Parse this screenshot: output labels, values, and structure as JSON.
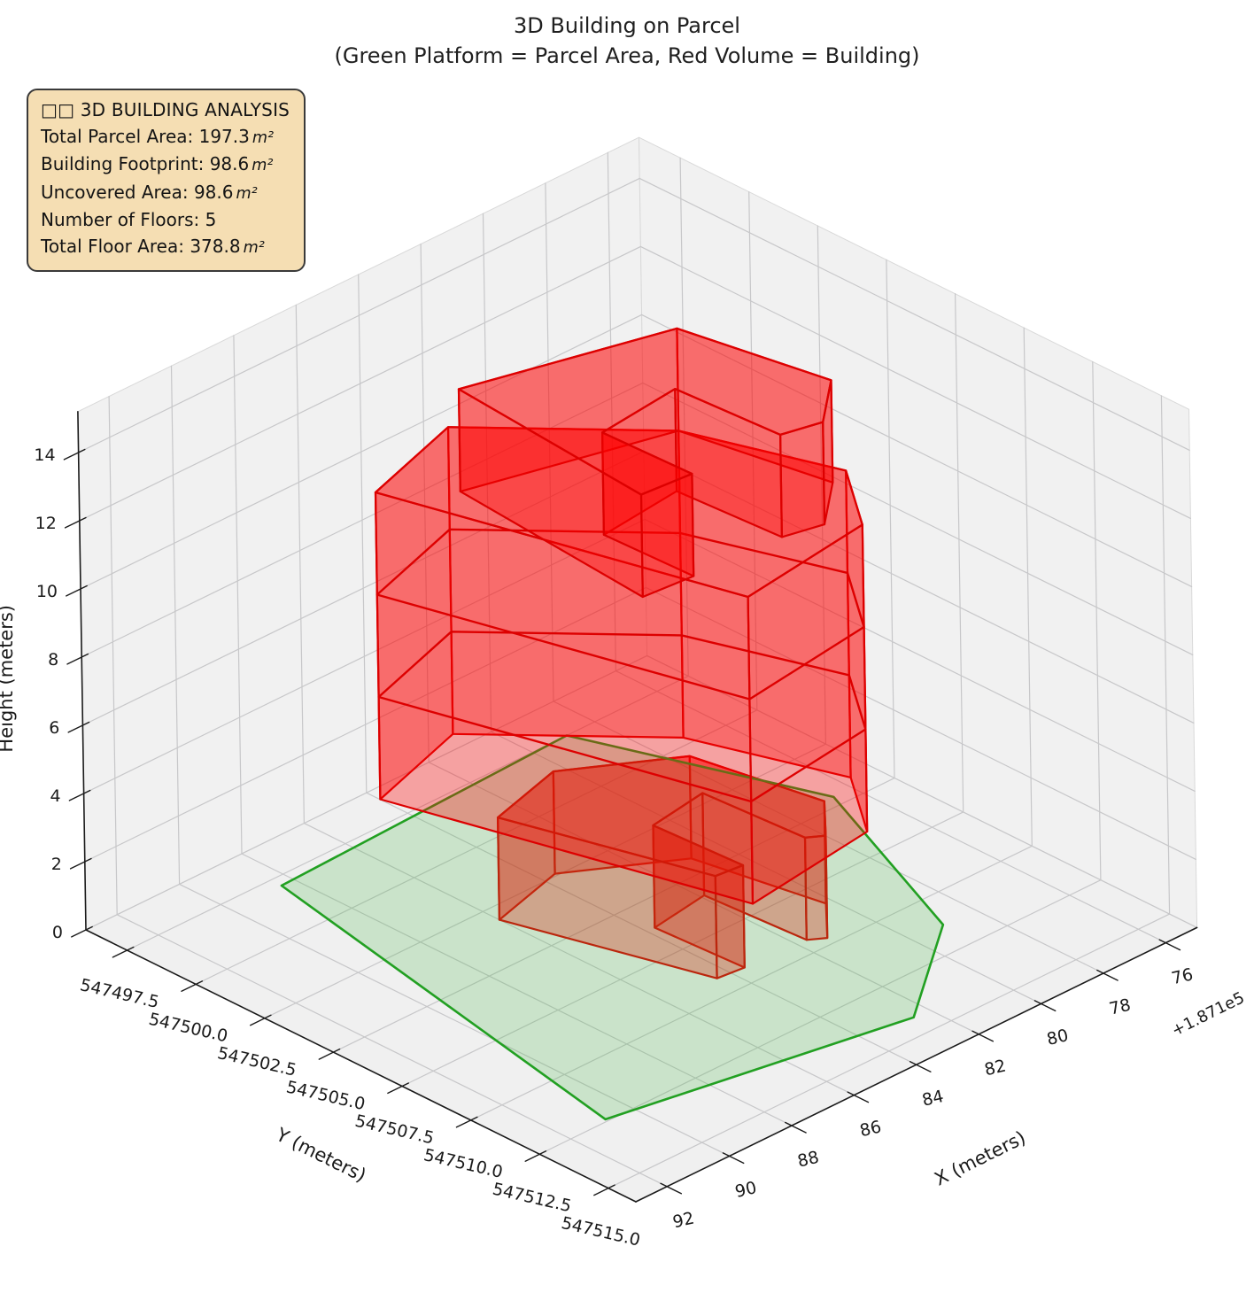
{
  "title": {
    "line1": "3D Building on Parcel",
    "line2": "(Green Platform = Parcel Area, Red Volume = Building)"
  },
  "info_box": {
    "title": "□□ 3D BUILDING ANALYSIS",
    "rows": [
      {
        "label": "Total Parcel Area:",
        "value": "197.3",
        "unit": "m²"
      },
      {
        "label": "Building Footprint:",
        "value": "98.6",
        "unit": "m²"
      },
      {
        "label": "Uncovered Area:",
        "value": "98.6",
        "unit": "m²"
      },
      {
        "label": "Number of Floors:",
        "value": "5",
        "unit": ""
      },
      {
        "label": "Total Floor Area:",
        "value": "378.8",
        "unit": "m²"
      }
    ],
    "background": "#f5deb3",
    "border_color": "#3a3a3a"
  },
  "chart_data": {
    "type": "3d-building",
    "axes": {
      "x": {
        "label": "X (meters)",
        "ticks": [
          187176,
          187178,
          187180,
          187182,
          187184,
          187186,
          187188,
          187190,
          187192
        ],
        "tick_labels": [
          "76",
          "78",
          "80",
          "82",
          "84",
          "86",
          "88",
          "90",
          "92"
        ],
        "offset_text": "+1.871e5",
        "lim": [
          187175,
          187193
        ]
      },
      "y": {
        "label": "Y (meters)",
        "ticks": [
          547497.5,
          547500.0,
          547502.5,
          547505.0,
          547507.5,
          547510.0,
          547512.5,
          547515.0
        ],
        "tick_labels": [
          "547497.5",
          "547500.0",
          "547502.5",
          "547505.0",
          "547507.5",
          "547510.0",
          "547512.5",
          "547515.0"
        ],
        "lim": [
          547496,
          547516
        ]
      },
      "z": {
        "label": "Height (meters)",
        "ticks": [
          0,
          2,
          4,
          6,
          8,
          10,
          12,
          14
        ],
        "tick_labels": [
          "0",
          "2",
          "4",
          "6",
          "8",
          "10",
          "12",
          "14"
        ],
        "lim": [
          0,
          15.2
        ]
      }
    },
    "stats": {
      "total_parcel_area_m2": 197.3,
      "building_footprint_m2": 98.6,
      "uncovered_area_m2": 98.6,
      "number_of_floors": 5,
      "total_floor_area_m2": 378.8
    },
    "parcel": {
      "name": "parcel-platform",
      "fill": "#3cb43c",
      "fill_alpha": 0.21,
      "edge": "#22a022",
      "edge_width": 2.6,
      "points": [
        [
          187188.4,
          547497.9
        ],
        [
          187190.8,
          547512.4
        ],
        [
          187182.5,
          547514.2
        ],
        [
          187179.0,
          547511.3
        ],
        [
          187176.6,
          547504.6
        ],
        [
          187178.9,
          547497.5
        ]
      ]
    },
    "building": {
      "edge": "#dd0000",
      "fill": "#ff0000",
      "fill_alpha": 0.33,
      "floor_height_m": 3,
      "floor_boundaries_z": [
        0,
        3,
        6,
        9,
        12,
        15
      ],
      "blocks": [
        {
          "name": "floor-1-base",
          "z0": 0,
          "z1": 3,
          "under_parcel": true,
          "footprint": [
            [
              187186.0,
              547503.1
            ],
            [
              187184.4,
              547509.2
            ],
            [
              187183.6,
              547509.3
            ],
            [
              187183.75,
              547506.2
            ],
            [
              187181.9,
              547505.9
            ],
            [
              187181.7,
              547509.4
            ],
            [
              187181.3,
              547509.7
            ],
            [
              187180.2,
              547508.4
            ],
            [
              187180.9,
              547504.3
            ],
            [
              187183.6,
              547502.4
            ]
          ]
        },
        {
          "name": "floors-2-4-main",
          "z0": 3,
          "z1": 12,
          "under_parcel": false,
          "floor_lines": [
            6,
            9
          ],
          "footprint": [
            [
              187187.3,
              547500.3
            ],
            [
              187184.7,
              547510.9
            ],
            [
              187180.5,
              547510.3
            ],
            [
              187179.0,
              547508.0
            ],
            [
              187180.4,
              547503.5
            ],
            [
              187184.0,
              547499.2
            ]
          ]
        },
        {
          "name": "floor-5-top",
          "z0": 12,
          "z1": 15,
          "under_parcel": false,
          "footprint": [
            [
              187185.9,
              547501.8
            ],
            [
              187186.4,
              547509.0
            ],
            [
              187184.9,
              547509.15
            ],
            [
              187185.0,
              547506.0
            ],
            [
              187182.4,
              547505.7
            ],
            [
              187182.2,
              547509.3
            ],
            [
              187181.1,
              547509.6
            ],
            [
              187179.6,
              547508.2
            ],
            [
              187180.4,
              547503.5
            ]
          ]
        }
      ]
    }
  }
}
